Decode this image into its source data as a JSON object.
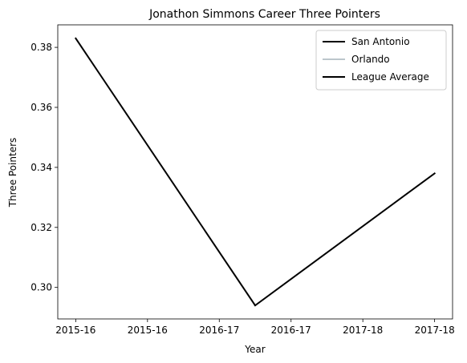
{
  "chart_data": {
    "type": "line",
    "title": "Jonathon Simmons Career Three Pointers",
    "xlabel": "Year",
    "ylabel": "Three Pointers",
    "x_tick_labels": [
      "2015-16",
      "2015-16",
      "2016-17",
      "2016-17",
      "2017-18",
      "2017-18"
    ],
    "y_ticks": [
      0.3,
      0.32,
      0.34,
      0.36,
      0.38
    ],
    "xlim": [
      -0.1,
      2.1
    ],
    "ylim": [
      0.2895,
      0.3875
    ],
    "grid": false,
    "legend_position": "top-right",
    "series": [
      {
        "name": "San Antonio",
        "color": "#000000",
        "x": [
          0,
          1
        ],
        "y": [
          0.383,
          0.294
        ]
      },
      {
        "name": "Orlando",
        "color": "#bcc6cc",
        "x": [],
        "y": []
      },
      {
        "name": "League Average",
        "color": "#000000",
        "x": [
          1,
          2
        ],
        "y": [
          0.294,
          0.338
        ]
      }
    ]
  }
}
